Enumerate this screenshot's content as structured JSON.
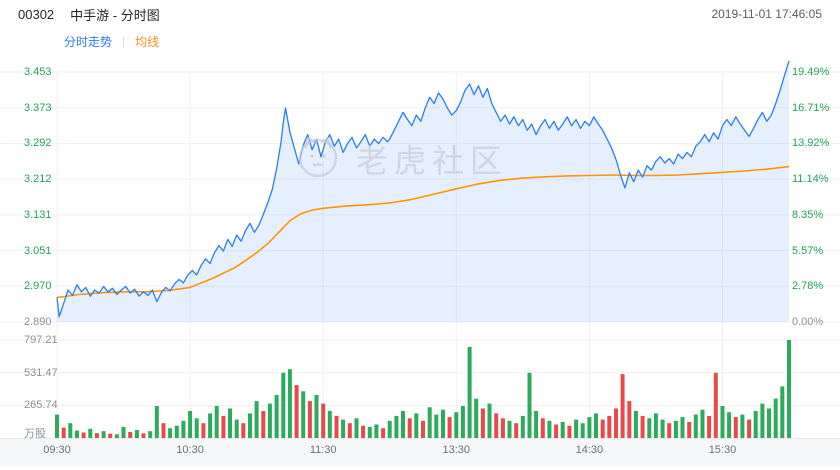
{
  "header": {
    "code": "00302",
    "name": "中手游 - 分时图",
    "timestamp": "2019-11-01 17:46:05"
  },
  "tabs": {
    "minute_tab": "分时走势",
    "divider": "|",
    "ma_tab": "均线"
  },
  "watermark": "老虎社区",
  "colors": {
    "price_line": "#2b7cf5",
    "price_fill": "rgba(43,124,245,0.12)",
    "avg_line": "#ff9500",
    "up": "#2cab5c",
    "down": "#e84a4a",
    "axis_pos": "#26a35a",
    "axis_zero": "#8a9099",
    "vol_label": "#8a9099",
    "grid": "#f0f1f4"
  },
  "chart_data": {
    "type": "line",
    "title": "00302 中手游 分时图 2019-11-01",
    "prev_close": 2.89,
    "x_total_minutes": 330,
    "x_tick_minutes": [
      0,
      60,
      120,
      180,
      240,
      300
    ],
    "x_tick_labels": [
      "09:30",
      "10:30",
      "11:30",
      "13:30",
      "14:30",
      "15:30"
    ],
    "price_axis_labels": [
      "3.453",
      "3.373",
      "3.292",
      "3.212",
      "3.131",
      "3.051",
      "2.970",
      "2.890"
    ],
    "price_axis_values": [
      3.453,
      3.373,
      3.292,
      3.212,
      3.131,
      3.051,
      2.97,
      2.89
    ],
    "pct_axis_labels": [
      "19.49%",
      "16.71%",
      "13.92%",
      "11.14%",
      "8.35%",
      "5.57%",
      "2.78%",
      "0.00%"
    ],
    "volume_axis_labels": [
      "797.21",
      "531.47",
      "265.74"
    ],
    "volume_axis_values": [
      797.21,
      531.47,
      265.74
    ],
    "volume_unit": "万股",
    "series": [
      {
        "name": "price",
        "points": [
          [
            0,
            2.945
          ],
          [
            1,
            2.902
          ],
          [
            3,
            2.932
          ],
          [
            5,
            2.962
          ],
          [
            7,
            2.95
          ],
          [
            9,
            2.974
          ],
          [
            11,
            2.958
          ],
          [
            13,
            2.968
          ],
          [
            15,
            2.948
          ],
          [
            17,
            2.962
          ],
          [
            19,
            2.955
          ],
          [
            21,
            2.97
          ],
          [
            23,
            2.958
          ],
          [
            25,
            2.966
          ],
          [
            27,
            2.952
          ],
          [
            29,
            2.962
          ],
          [
            31,
            2.97
          ],
          [
            33,
            2.955
          ],
          [
            35,
            2.964
          ],
          [
            37,
            2.948
          ],
          [
            39,
            2.958
          ],
          [
            41,
            2.95
          ],
          [
            43,
            2.962
          ],
          [
            45,
            2.936
          ],
          [
            47,
            2.956
          ],
          [
            49,
            2.968
          ],
          [
            51,
            2.96
          ],
          [
            53,
            2.976
          ],
          [
            55,
            2.986
          ],
          [
            57,
            2.978
          ],
          [
            59,
            2.996
          ],
          [
            61,
            3.006
          ],
          [
            63,
            2.996
          ],
          [
            65,
            3.018
          ],
          [
            67,
            3.032
          ],
          [
            69,
            3.022
          ],
          [
            71,
            3.046
          ],
          [
            73,
            3.062
          ],
          [
            75,
            3.05
          ],
          [
            77,
            3.076
          ],
          [
            79,
            3.06
          ],
          [
            81,
            3.086
          ],
          [
            83,
            3.072
          ],
          [
            85,
            3.096
          ],
          [
            87,
            3.112
          ],
          [
            89,
            3.092
          ],
          [
            91,
            3.108
          ],
          [
            93,
            3.132
          ],
          [
            95,
            3.158
          ],
          [
            97,
            3.188
          ],
          [
            99,
            3.235
          ],
          [
            101,
            3.295
          ],
          [
            102,
            3.34
          ],
          [
            103,
            3.372
          ],
          [
            105,
            3.318
          ],
          [
            107,
            3.282
          ],
          [
            109,
            3.246
          ],
          [
            111,
            3.288
          ],
          [
            113,
            3.312
          ],
          [
            115,
            3.278
          ],
          [
            117,
            3.302
          ],
          [
            119,
            3.262
          ],
          [
            121,
            3.296
          ],
          [
            123,
            3.312
          ],
          [
            125,
            3.286
          ],
          [
            127,
            3.302
          ],
          [
            129,
            3.272
          ],
          [
            131,
            3.292
          ],
          [
            133,
            3.306
          ],
          [
            135,
            3.282
          ],
          [
            137,
            3.296
          ],
          [
            139,
            3.312
          ],
          [
            141,
            3.286
          ],
          [
            143,
            3.302
          ],
          [
            145,
            3.292
          ],
          [
            147,
            3.306
          ],
          [
            149,
            3.296
          ],
          [
            150,
            3.302
          ],
          [
            152,
            3.322
          ],
          [
            154,
            3.342
          ],
          [
            156,
            3.362
          ],
          [
            158,
            3.346
          ],
          [
            160,
            3.332
          ],
          [
            162,
            3.356
          ],
          [
            164,
            3.342
          ],
          [
            166,
            3.372
          ],
          [
            168,
            3.396
          ],
          [
            170,
            3.382
          ],
          [
            172,
            3.406
          ],
          [
            174,
            3.392
          ],
          [
            176,
            3.372
          ],
          [
            178,
            3.356
          ],
          [
            180,
            3.366
          ],
          [
            182,
            3.386
          ],
          [
            184,
            3.412
          ],
          [
            186,
            3.426
          ],
          [
            188,
            3.402
          ],
          [
            190,
            3.422
          ],
          [
            192,
            3.396
          ],
          [
            194,
            3.416
          ],
          [
            196,
            3.382
          ],
          [
            198,
            3.362
          ],
          [
            200,
            3.342
          ],
          [
            202,
            3.356
          ],
          [
            204,
            3.336
          ],
          [
            206,
            3.352
          ],
          [
            208,
            3.332
          ],
          [
            210,
            3.346
          ],
          [
            212,
            3.322
          ],
          [
            214,
            3.336
          ],
          [
            216,
            3.312
          ],
          [
            218,
            3.332
          ],
          [
            220,
            3.346
          ],
          [
            222,
            3.326
          ],
          [
            224,
            3.342
          ],
          [
            226,
            3.322
          ],
          [
            228,
            3.336
          ],
          [
            230,
            3.352
          ],
          [
            232,
            3.332
          ],
          [
            234,
            3.346
          ],
          [
            236,
            3.326
          ],
          [
            238,
            3.342
          ],
          [
            240,
            3.332
          ],
          [
            242,
            3.352
          ],
          [
            244,
            3.336
          ],
          [
            246,
            3.322
          ],
          [
            248,
            3.302
          ],
          [
            250,
            3.282
          ],
          [
            252,
            3.256
          ],
          [
            254,
            3.222
          ],
          [
            256,
            3.192
          ],
          [
            258,
            3.226
          ],
          [
            260,
            3.206
          ],
          [
            262,
            3.232
          ],
          [
            264,
            3.216
          ],
          [
            266,
            3.242
          ],
          [
            268,
            3.232
          ],
          [
            270,
            3.252
          ],
          [
            272,
            3.262
          ],
          [
            274,
            3.248
          ],
          [
            276,
            3.258
          ],
          [
            278,
            3.246
          ],
          [
            280,
            3.268
          ],
          [
            282,
            3.258
          ],
          [
            284,
            3.272
          ],
          [
            286,
            3.262
          ],
          [
            288,
            3.286
          ],
          [
            290,
            3.296
          ],
          [
            292,
            3.312
          ],
          [
            294,
            3.296
          ],
          [
            296,
            3.316
          ],
          [
            298,
            3.302
          ],
          [
            300,
            3.332
          ],
          [
            302,
            3.346
          ],
          [
            304,
            3.332
          ],
          [
            306,
            3.352
          ],
          [
            308,
            3.336
          ],
          [
            310,
            3.322
          ],
          [
            312,
            3.308
          ],
          [
            314,
            3.326
          ],
          [
            316,
            3.346
          ],
          [
            318,
            3.362
          ],
          [
            320,
            3.342
          ],
          [
            322,
            3.356
          ],
          [
            324,
            3.382
          ],
          [
            326,
            3.412
          ],
          [
            328,
            3.446
          ],
          [
            330,
            3.478
          ]
        ]
      },
      {
        "name": "avg",
        "points": [
          [
            0,
            2.945
          ],
          [
            10,
            2.952
          ],
          [
            20,
            2.956
          ],
          [
            30,
            2.958
          ],
          [
            40,
            2.958
          ],
          [
            50,
            2.961
          ],
          [
            60,
            2.968
          ],
          [
            70,
            2.988
          ],
          [
            80,
            3.012
          ],
          [
            85,
            3.028
          ],
          [
            90,
            3.046
          ],
          [
            95,
            3.066
          ],
          [
            100,
            3.092
          ],
          [
            105,
            3.118
          ],
          [
            110,
            3.134
          ],
          [
            115,
            3.142
          ],
          [
            120,
            3.146
          ],
          [
            130,
            3.151
          ],
          [
            140,
            3.154
          ],
          [
            150,
            3.158
          ],
          [
            160,
            3.166
          ],
          [
            170,
            3.178
          ],
          [
            180,
            3.19
          ],
          [
            190,
            3.201
          ],
          [
            200,
            3.209
          ],
          [
            210,
            3.214
          ],
          [
            220,
            3.217
          ],
          [
            230,
            3.219
          ],
          [
            240,
            3.22
          ],
          [
            250,
            3.221
          ],
          [
            260,
            3.22
          ],
          [
            270,
            3.22
          ],
          [
            280,
            3.221
          ],
          [
            290,
            3.224
          ],
          [
            300,
            3.227
          ],
          [
            310,
            3.23
          ],
          [
            320,
            3.234
          ],
          [
            330,
            3.24
          ]
        ]
      }
    ],
    "volume_bars": [
      [
        0,
        190,
        "g"
      ],
      [
        3,
        85,
        "r"
      ],
      [
        6,
        120,
        "g"
      ],
      [
        9,
        60,
        "g"
      ],
      [
        12,
        45,
        "r"
      ],
      [
        15,
        75,
        "g"
      ],
      [
        18,
        40,
        "r"
      ],
      [
        21,
        55,
        "g"
      ],
      [
        24,
        35,
        "r"
      ],
      [
        27,
        30,
        "g"
      ],
      [
        30,
        90,
        "g"
      ],
      [
        33,
        50,
        "r"
      ],
      [
        36,
        65,
        "g"
      ],
      [
        39,
        38,
        "r"
      ],
      [
        42,
        55,
        "g"
      ],
      [
        45,
        260,
        "g"
      ],
      [
        48,
        120,
        "r"
      ],
      [
        51,
        80,
        "g"
      ],
      [
        54,
        100,
        "g"
      ],
      [
        57,
        140,
        "g"
      ],
      [
        60,
        220,
        "g"
      ],
      [
        63,
        160,
        "g"
      ],
      [
        66,
        120,
        "r"
      ],
      [
        69,
        200,
        "g"
      ],
      [
        72,
        260,
        "g"
      ],
      [
        75,
        180,
        "r"
      ],
      [
        78,
        240,
        "g"
      ],
      [
        81,
        150,
        "g"
      ],
      [
        84,
        120,
        "r"
      ],
      [
        87,
        200,
        "g"
      ],
      [
        90,
        300,
        "g"
      ],
      [
        93,
        220,
        "r"
      ],
      [
        96,
        280,
        "g"
      ],
      [
        99,
        350,
        "g"
      ],
      [
        102,
        530,
        "g"
      ],
      [
        105,
        560,
        "g"
      ],
      [
        108,
        430,
        "r"
      ],
      [
        111,
        380,
        "g"
      ],
      [
        114,
        300,
        "r"
      ],
      [
        117,
        350,
        "g"
      ],
      [
        120,
        280,
        "r"
      ],
      [
        123,
        220,
        "g"
      ],
      [
        126,
        180,
        "r"
      ],
      [
        129,
        150,
        "g"
      ],
      [
        132,
        120,
        "r"
      ],
      [
        135,
        160,
        "g"
      ],
      [
        138,
        100,
        "r"
      ],
      [
        141,
        90,
        "g"
      ],
      [
        144,
        110,
        "g"
      ],
      [
        147,
        80,
        "r"
      ],
      [
        150,
        140,
        "g"
      ],
      [
        153,
        180,
        "g"
      ],
      [
        156,
        220,
        "g"
      ],
      [
        159,
        160,
        "r"
      ],
      [
        162,
        200,
        "g"
      ],
      [
        165,
        140,
        "r"
      ],
      [
        168,
        250,
        "g"
      ],
      [
        171,
        190,
        "g"
      ],
      [
        174,
        230,
        "g"
      ],
      [
        177,
        170,
        "r"
      ],
      [
        180,
        210,
        "g"
      ],
      [
        183,
        260,
        "g"
      ],
      [
        186,
        740,
        "g"
      ],
      [
        189,
        320,
        "g"
      ],
      [
        192,
        240,
        "r"
      ],
      [
        195,
        280,
        "g"
      ],
      [
        198,
        200,
        "r"
      ],
      [
        201,
        160,
        "r"
      ],
      [
        204,
        140,
        "g"
      ],
      [
        207,
        120,
        "r"
      ],
      [
        210,
        180,
        "g"
      ],
      [
        213,
        530,
        "g"
      ],
      [
        216,
        220,
        "g"
      ],
      [
        219,
        160,
        "r"
      ],
      [
        222,
        140,
        "g"
      ],
      [
        225,
        110,
        "r"
      ],
      [
        228,
        130,
        "g"
      ],
      [
        231,
        100,
        "r"
      ],
      [
        234,
        150,
        "g"
      ],
      [
        237,
        120,
        "g"
      ],
      [
        240,
        170,
        "g"
      ],
      [
        243,
        200,
        "g"
      ],
      [
        246,
        150,
        "r"
      ],
      [
        249,
        180,
        "r"
      ],
      [
        252,
        240,
        "r"
      ],
      [
        255,
        520,
        "r"
      ],
      [
        258,
        300,
        "r"
      ],
      [
        261,
        220,
        "g"
      ],
      [
        264,
        180,
        "r"
      ],
      [
        267,
        160,
        "g"
      ],
      [
        270,
        200,
        "g"
      ],
      [
        273,
        150,
        "g"
      ],
      [
        276,
        120,
        "r"
      ],
      [
        279,
        140,
        "g"
      ],
      [
        282,
        170,
        "g"
      ],
      [
        285,
        130,
        "r"
      ],
      [
        288,
        190,
        "g"
      ],
      [
        291,
        230,
        "g"
      ],
      [
        294,
        180,
        "r"
      ],
      [
        297,
        530,
        "r"
      ],
      [
        300,
        260,
        "g"
      ],
      [
        303,
        210,
        "g"
      ],
      [
        306,
        170,
        "r"
      ],
      [
        309,
        190,
        "g"
      ],
      [
        312,
        150,
        "r"
      ],
      [
        315,
        220,
        "g"
      ],
      [
        318,
        280,
        "g"
      ],
      [
        321,
        240,
        "g"
      ],
      [
        324,
        320,
        "g"
      ],
      [
        327,
        420,
        "g"
      ],
      [
        330,
        797,
        "g"
      ]
    ]
  }
}
